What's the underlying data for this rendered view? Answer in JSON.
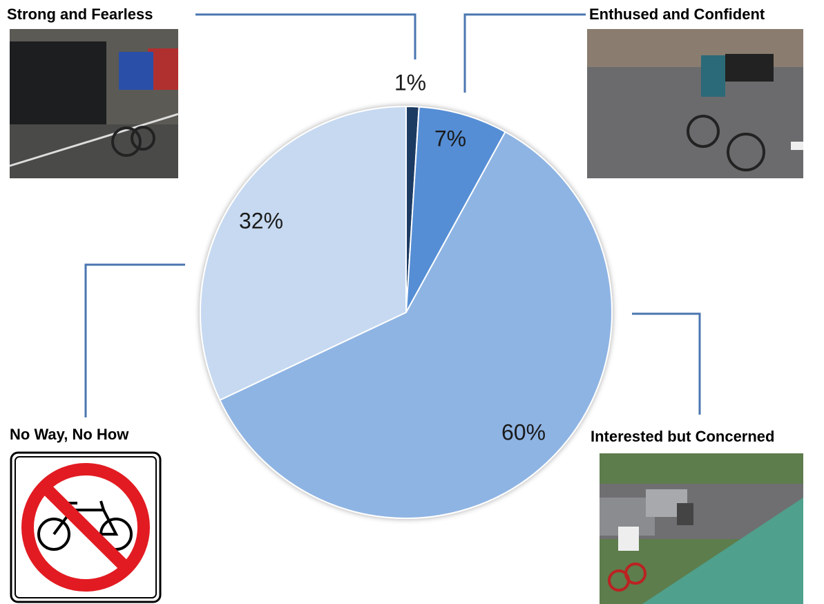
{
  "chart_data": {
    "type": "pie",
    "categories": [
      "Strong and Fearless",
      "Enthused and Confident",
      "Interested but Concerned",
      "No Way, No How"
    ],
    "values": [
      1,
      7,
      60,
      32
    ],
    "value_labels": [
      "1%",
      "7%",
      "60%",
      "32%"
    ],
    "colors": [
      "#1f3b63",
      "#558ed5",
      "#8eb4e3",
      "#c6d9f1"
    ]
  }
}
